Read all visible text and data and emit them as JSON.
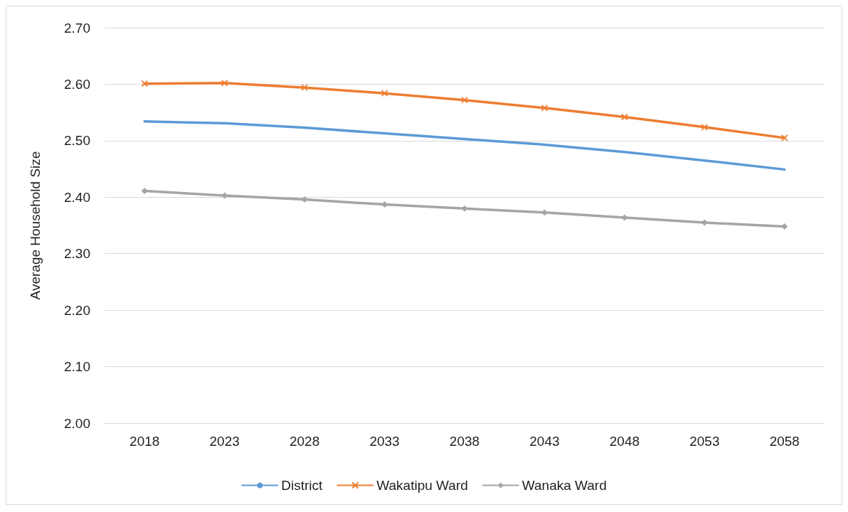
{
  "chart_data": {
    "type": "line",
    "ylabel": "Average Household Size",
    "categories": [
      "2018",
      "2023",
      "2028",
      "2033",
      "2038",
      "2043",
      "2048",
      "2053",
      "2058"
    ],
    "series": [
      {
        "name": "District",
        "color": "#5b9bd5",
        "marker": "none",
        "values": [
          2.534,
          2.531,
          2.523,
          2.513,
          2.503,
          2.493,
          2.48,
          2.465,
          2.449
        ]
      },
      {
        "name": "Wakatipu Ward",
        "color": "#ed7d31",
        "marker": "cross",
        "values": [
          2.601,
          2.602,
          2.594,
          2.584,
          2.572,
          2.558,
          2.542,
          2.524,
          2.505
        ]
      },
      {
        "name": "Wanaka Ward",
        "color": "#a5a5a5",
        "marker": "diamond",
        "values": [
          2.411,
          2.403,
          2.396,
          2.387,
          2.38,
          2.373,
          2.364,
          2.355,
          2.348
        ]
      }
    ],
    "ylim": [
      2.0,
      2.7
    ],
    "yticks": [
      {
        "value": 2.0,
        "label": "2.00"
      },
      {
        "value": 2.1,
        "label": "2.10"
      },
      {
        "value": 2.2,
        "label": "2.20"
      },
      {
        "value": 2.3,
        "label": "2.30"
      },
      {
        "value": 2.4,
        "label": "2.40"
      },
      {
        "value": 2.5,
        "label": "2.50"
      },
      {
        "value": 2.6,
        "label": "2.60"
      },
      {
        "value": 2.7,
        "label": "2.70"
      }
    ],
    "grid": "y",
    "legend": "bottom",
    "line_style": "solid"
  }
}
